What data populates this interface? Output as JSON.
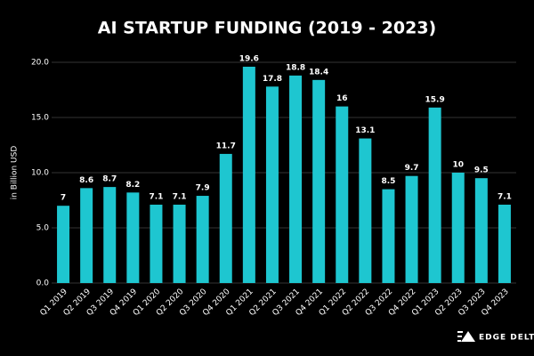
{
  "chart_data": {
    "type": "bar",
    "title": "AI STARTUP FUNDING (2019 - 2023)",
    "y_label": "in Billion USD",
    "logo_text": "EDGE DELTA",
    "categories": [
      "Q1 2019",
      "Q2 2019",
      "Q3 2019",
      "Q4 2019",
      "Q1 2020",
      "Q2 2020",
      "Q3 2020",
      "Q4 2020",
      "Q1 2021",
      "Q2 2021",
      "Q3 2021",
      "Q4 2021",
      "Q1 2022",
      "Q2 2022",
      "Q3 2022",
      "Q4 2022",
      "Q1 2023",
      "Q2 2023",
      "Q3 2023",
      "Q4 2023"
    ],
    "values": [
      7,
      8.6,
      8.7,
      8.2,
      7.1,
      7.1,
      7.9,
      11.7,
      19.6,
      17.8,
      18.8,
      18.4,
      16,
      13.1,
      8.5,
      9.7,
      15.9,
      10,
      9.5,
      7.1
    ],
    "color": "#1ec6d0",
    "ylim": [
      0,
      20
    ],
    "yticks": [
      {
        "value": 0,
        "label": "0.0"
      },
      {
        "value": 5,
        "label": "5.0"
      },
      {
        "value": 10,
        "label": "10.0"
      },
      {
        "value": 15,
        "label": "15.0"
      },
      {
        "value": 20,
        "label": "20.0"
      }
    ],
    "grid": true
  }
}
